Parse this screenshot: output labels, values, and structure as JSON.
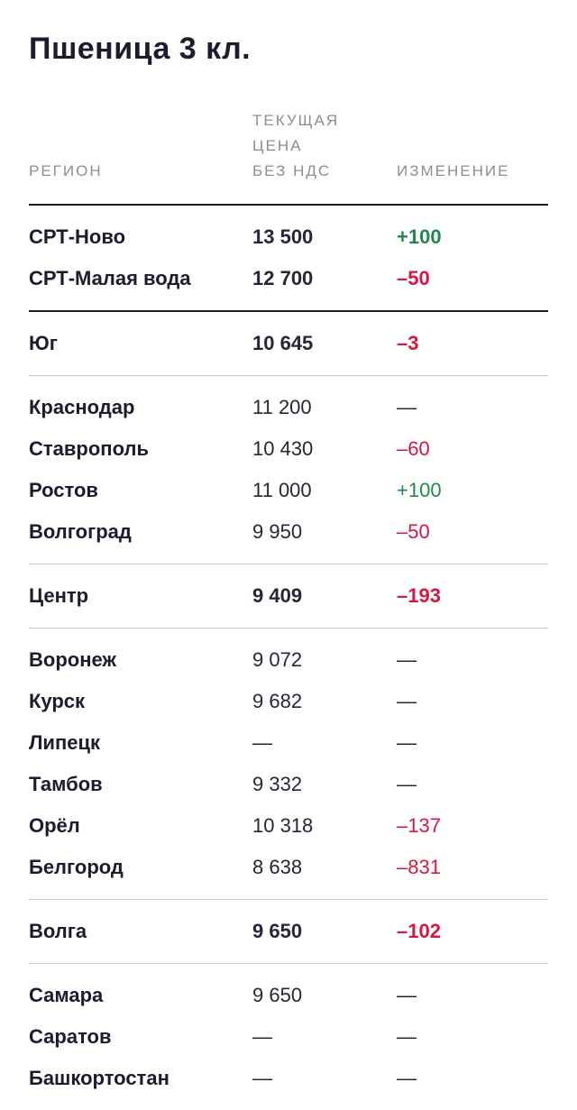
{
  "title": "Пшеница 3 кл.",
  "columns": {
    "region": "РЕГИОН",
    "price": "ТЕКУЩАЯ\nЦЕНА\nБЕЗ НДС",
    "change": "ИЗМЕНЕНИЕ"
  },
  "colors": {
    "text": "#1f1a2e",
    "header": "#8e8c95",
    "positive": "#1f8a4c",
    "negative": "#d6173f",
    "divider_dark": "#1f1a2e",
    "divider_light": "#c9c7cd"
  },
  "groups": [
    {
      "separator": "none",
      "rows": [
        {
          "region": "СРТ-Ново",
          "price": "13 500",
          "change": "+100",
          "trend": "pos",
          "bold": true
        },
        {
          "region": "СРТ-Малая вода",
          "price": "12 700",
          "change": "–50",
          "trend": "neg",
          "bold": true
        }
      ]
    },
    {
      "separator": "dark",
      "rows": [
        {
          "region": "Юг",
          "price": "10 645",
          "change": "–3",
          "trend": "neg",
          "bold": true
        }
      ]
    },
    {
      "separator": "light",
      "rows": [
        {
          "region": "Краснодар",
          "price": "11 200",
          "change": "—",
          "trend": "none",
          "bold": false
        },
        {
          "region": "Ставрополь",
          "price": "10 430",
          "change": "–60",
          "trend": "neg",
          "bold": false
        },
        {
          "region": "Ростов",
          "price": "11 000",
          "change": "+100",
          "trend": "pos",
          "bold": false
        },
        {
          "region": "Волгоград",
          "price": "9 950",
          "change": "–50",
          "trend": "neg",
          "bold": false
        }
      ]
    },
    {
      "separator": "light",
      "rows": [
        {
          "region": "Центр",
          "price": "9 409",
          "change": "–193",
          "trend": "neg",
          "bold": true
        }
      ]
    },
    {
      "separator": "light",
      "rows": [
        {
          "region": "Воронеж",
          "price": "9 072",
          "change": "—",
          "trend": "none",
          "bold": false
        },
        {
          "region": "Курск",
          "price": "9 682",
          "change": "—",
          "trend": "none",
          "bold": false
        },
        {
          "region": "Липецк",
          "price": "—",
          "change": "—",
          "trend": "none",
          "bold": false
        },
        {
          "region": "Тамбов",
          "price": "9 332",
          "change": "—",
          "trend": "none",
          "bold": false
        },
        {
          "region": "Орёл",
          "price": "10 318",
          "change": "–137",
          "trend": "neg",
          "bold": false
        },
        {
          "region": "Белгород",
          "price": "8 638",
          "change": "–831",
          "trend": "neg",
          "bold": false
        }
      ]
    },
    {
      "separator": "light",
      "rows": [
        {
          "region": "Волга",
          "price": "9 650",
          "change": "–102",
          "trend": "neg",
          "bold": true
        }
      ]
    },
    {
      "separator": "light",
      "rows": [
        {
          "region": "Самара",
          "price": "9 650",
          "change": "—",
          "trend": "none",
          "bold": false
        },
        {
          "region": "Саратов",
          "price": "—",
          "change": "—",
          "trend": "none",
          "bold": false
        },
        {
          "region": "Башкортостан",
          "price": "—",
          "change": "—",
          "trend": "none",
          "bold": false
        }
      ]
    }
  ]
}
